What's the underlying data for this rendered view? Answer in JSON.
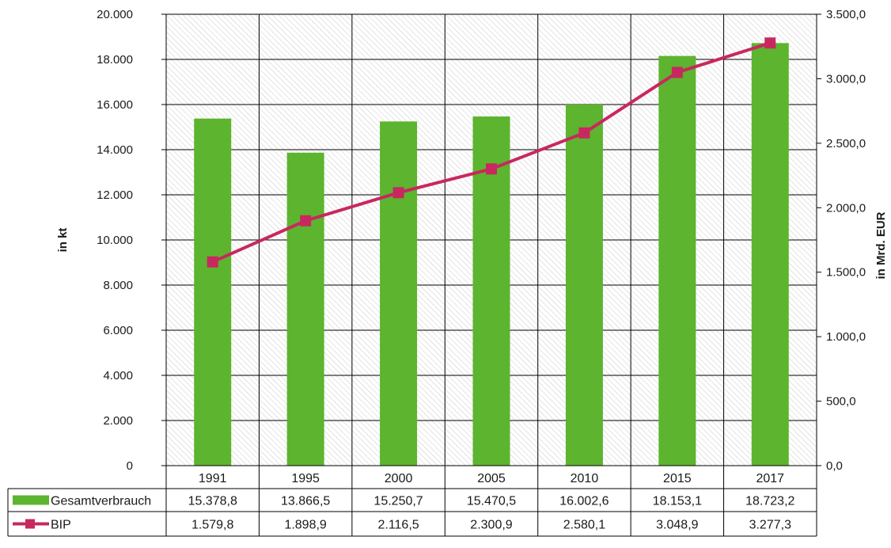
{
  "chart_data": {
    "type": "bar",
    "categories": [
      "1991",
      "1995",
      "2000",
      "2005",
      "2010",
      "2015",
      "2017"
    ],
    "series": [
      {
        "name": "Gesamtverbrauch",
        "kind": "bar",
        "axis": "left",
        "color": "#5db42f",
        "values": [
          15378.8,
          13866.5,
          15250.7,
          15470.5,
          16002.6,
          18153.1,
          18723.2
        ],
        "labels": [
          "15.378,8",
          "13.866,5",
          "15.250,7",
          "15.470,5",
          "16.002,6",
          "18.153,1",
          "18.723,2"
        ]
      },
      {
        "name": "BIP",
        "kind": "line",
        "axis": "right",
        "color": "#c8285f",
        "values": [
          1579.8,
          1898.9,
          2116.5,
          2300.9,
          2580.1,
          3048.9,
          3277.3
        ],
        "labels": [
          "1.579,8",
          "1.898,9",
          "2.116,5",
          "2.300,9",
          "2.580,1",
          "3.048,9",
          "3.277,3"
        ]
      }
    ],
    "y_left": {
      "label": "in kt",
      "ylim": [
        0,
        20000
      ],
      "ticks": [
        "0",
        "2.000",
        "4.000",
        "6.000",
        "8.000",
        "10.000",
        "12.000",
        "14.000",
        "16.000",
        "18.000",
        "20.000"
      ]
    },
    "y_right": {
      "label": "in Mrd. EUR",
      "ylim": [
        0,
        3500
      ],
      "ticks": [
        "0,0",
        "500,0",
        "1.000,0",
        "1.500,0",
        "2.000,0",
        "2.500,0",
        "3.000,0",
        "3.500,0"
      ]
    },
    "grid": true,
    "plot_background": "hatched",
    "legend": "data-table-below"
  }
}
